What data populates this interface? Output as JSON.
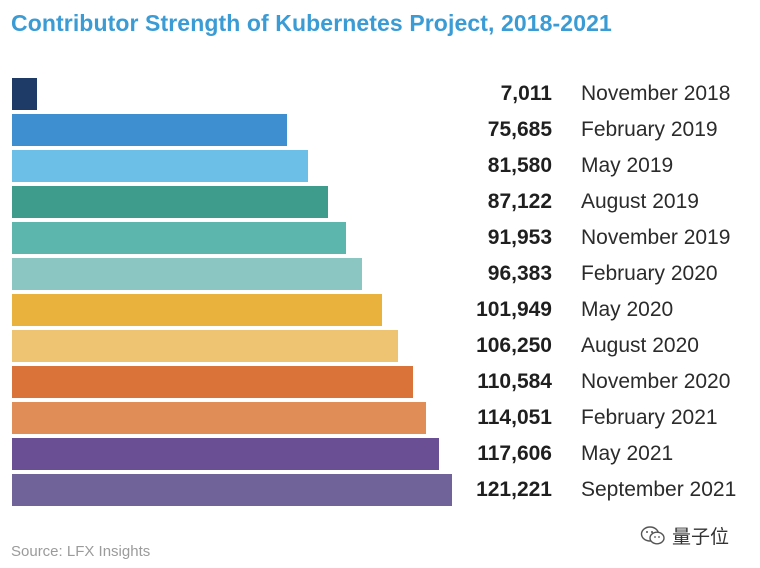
{
  "chart_data": {
    "type": "bar",
    "orientation": "horizontal",
    "title": "Contributor Strength of Kubernetes Project, 2018-2021",
    "categories": [
      "November 2018",
      "February 2019",
      "May 2019",
      "August 2019",
      "November 2019",
      "February 2020",
      "May 2020",
      "August 2020",
      "November 2020",
      "February 2021",
      "May 2021",
      "September 2021"
    ],
    "values": [
      7011,
      75685,
      81580,
      87122,
      91953,
      96383,
      101949,
      106250,
      110584,
      114051,
      117606,
      121221
    ],
    "value_labels": [
      "7,011",
      "75,685",
      "81,580",
      "87,122",
      "91,953",
      "96,383",
      "101,949",
      "106,250",
      "110,584",
      "114,051",
      "117,606",
      "121,221"
    ],
    "colors": [
      "#1e3a66",
      "#3d8fd0",
      "#6cc0e8",
      "#3d9c8c",
      "#5cb6ae",
      "#8bc6c3",
      "#e9b23d",
      "#eec472",
      "#d9733a",
      "#e08d58",
      "#6a4f94",
      "#6f6399"
    ],
    "xlabel": "",
    "ylabel": "",
    "xlim": [
      0,
      121221
    ],
    "grid": false,
    "legend": "none"
  },
  "source": "Source: LFX Insights",
  "watermark": {
    "text": "量子位",
    "icon": "wechat-icon"
  }
}
